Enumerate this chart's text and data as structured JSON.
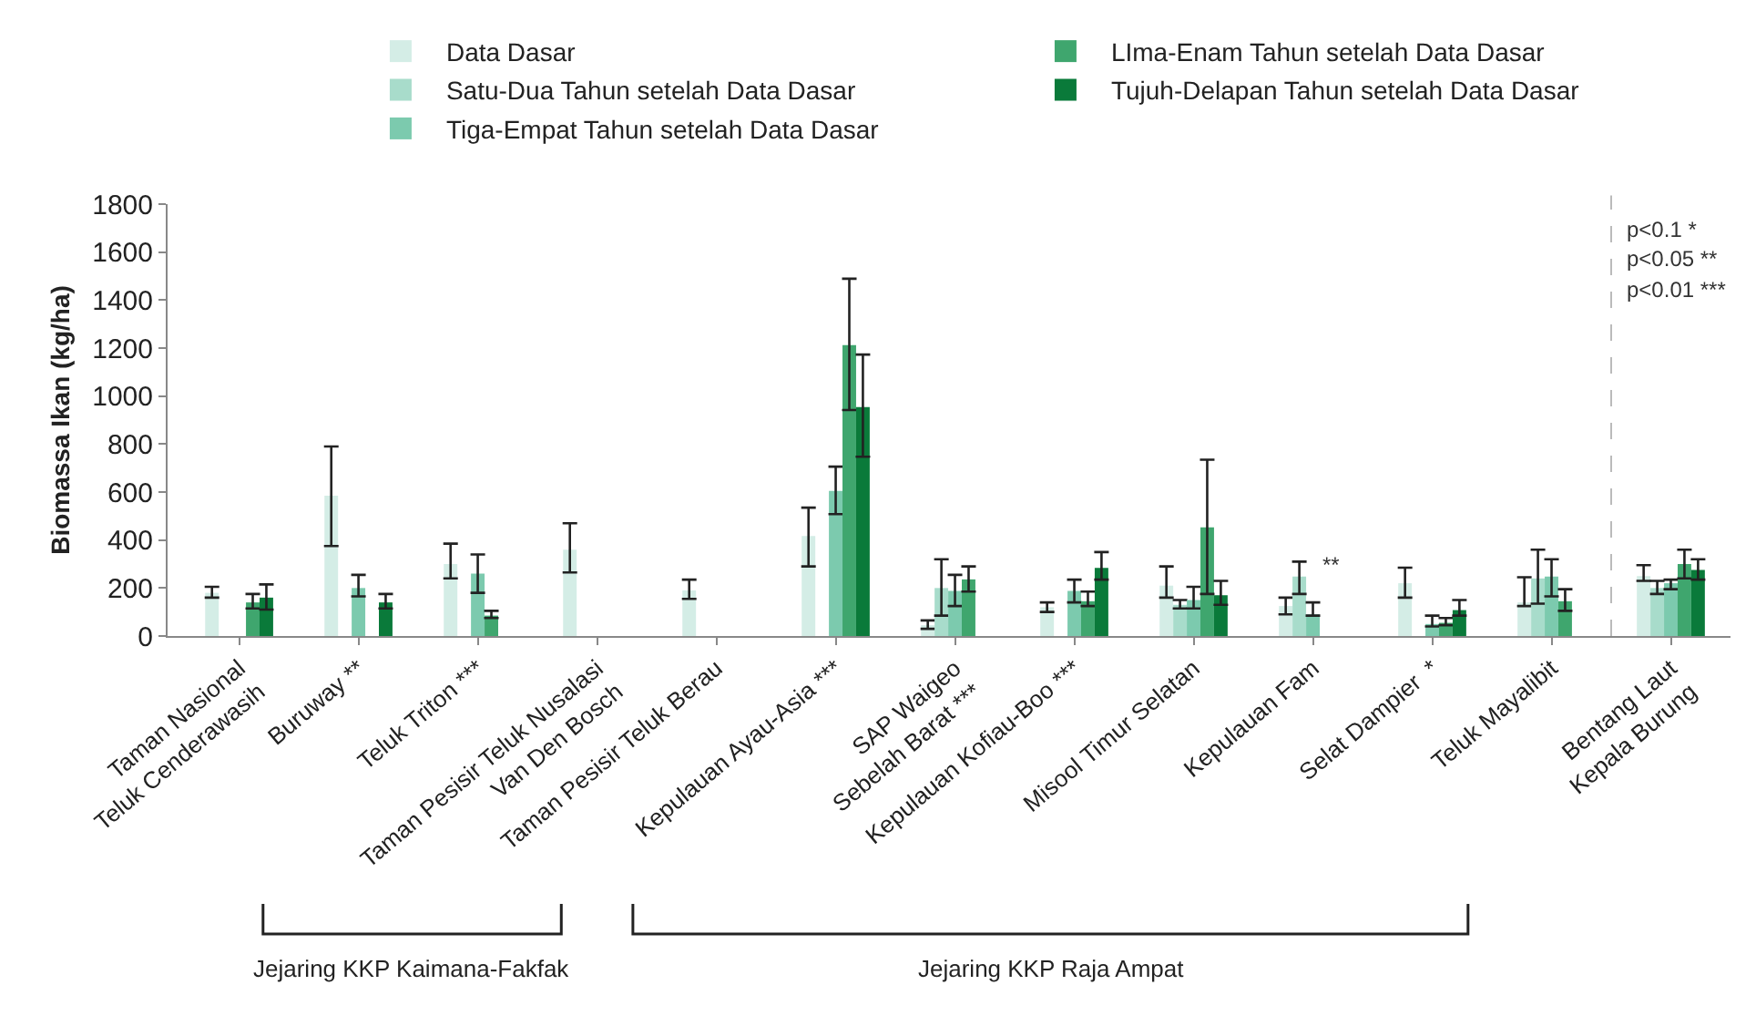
{
  "chart_data": {
    "type": "bar",
    "ylabel": "Biomassa Ikan (kg/ha)",
    "categories": [
      "Taman Nasional\nTeluk Cenderawasih",
      "Buruway **",
      "Teluk Triton ***",
      "Taman Pesisir Teluk Nusalasi\nVan Den Bosch",
      "Taman Pesisir Teluk Berau",
      "Kepulauan Ayau-Asia ***",
      "SAP Waigeo\nSebelah Barat ***",
      "Kepulauan Kofiau-Boo ***",
      "Misool Timur Selatan",
      "Kepulauan Fam",
      "Selat Dampier  *",
      "Teluk Mayalibit",
      "Bentang Laut\nKepala Burung"
    ],
    "series": [
      {
        "name": "Data Dasar",
        "color": "#d4ede6",
        "values": [
          180,
          585,
          300,
          360,
          190,
          417,
          45,
          120,
          210,
          125,
          220,
          140,
          250
        ],
        "errors": [
          [
            160,
            205
          ],
          [
            375,
            790
          ],
          [
            240,
            385
          ],
          [
            265,
            470
          ],
          [
            155,
            235
          ],
          [
            290,
            535
          ],
          [
            30,
            65
          ],
          [
            100,
            140
          ],
          [
            160,
            290
          ],
          [
            90,
            160
          ],
          [
            160,
            285
          ],
          [
            125,
            245
          ],
          [
            230,
            295
          ]
        ]
      },
      {
        "name": "Satu-Dua Tahun setelah Data Dasar",
        "color": "#a8dccb",
        "values": [
          null,
          null,
          null,
          null,
          null,
          null,
          200,
          null,
          130,
          248,
          null,
          240,
          200
        ],
        "errors": [
          null,
          null,
          null,
          null,
          null,
          null,
          [
            85,
            320
          ],
          null,
          [
            115,
            150
          ],
          [
            175,
            310
          ],
          null,
          [
            135,
            360
          ],
          [
            175,
            230
          ]
        ]
      },
      {
        "name": "Tiga-Empat Tahun setelah Data Dasar",
        "color": "#7ccaae",
        "values": [
          null,
          200,
          260,
          null,
          null,
          605,
          188,
          188,
          150,
          90,
          50,
          248,
          220
        ],
        "errors": [
          null,
          [
            165,
            255
          ],
          [
            180,
            340
          ],
          null,
          null,
          [
            508,
            706
          ],
          [
            125,
            255
          ],
          [
            140,
            235
          ],
          [
            115,
            205
          ],
          [
            85,
            140
          ],
          [
            40,
            85
          ],
          [
            165,
            320
          ],
          [
            195,
            235
          ]
        ]
      },
      {
        "name": "LIma-Enam Tahun setelah Data Dasar",
        "color": "#3fa66e",
        "values": [
          140,
          null,
          85,
          null,
          null,
          1212,
          236,
          145,
          453,
          null,
          55,
          145,
          300
        ],
        "errors": [
          [
            115,
            175
          ],
          null,
          [
            75,
            105
          ],
          null,
          null,
          [
            942,
            1489
          ],
          [
            185,
            290
          ],
          [
            125,
            185
          ],
          [
            175,
            735
          ],
          null,
          [
            45,
            75
          ],
          [
            105,
            195
          ],
          [
            240,
            360
          ]
        ]
      },
      {
        "name": "Tujuh-Delapan Tahun setelah Data Dasar",
        "color": "#0a7a3a",
        "values": [
          160,
          140,
          null,
          null,
          null,
          954,
          null,
          284,
          170,
          null,
          108,
          null,
          275
        ],
        "errors": [
          [
            110,
            215
          ],
          [
            115,
            175
          ],
          null,
          null,
          null,
          [
            747,
            1173
          ],
          null,
          [
            235,
            350
          ],
          [
            130,
            230
          ],
          null,
          [
            85,
            150
          ],
          null,
          [
            235,
            320
          ]
        ]
      }
    ],
    "ylim": [
      0,
      1800
    ],
    "yticks": [
      0,
      200,
      400,
      600,
      800,
      1000,
      1200,
      1400,
      1600,
      1800
    ],
    "grid": false,
    "legend": "top",
    "annotations": [
      {
        "text": "**",
        "x": "Kepulauan Fam",
        "y": 300
      },
      "p<0.1 *",
      "p<0.05 **",
      "p<0.01 ***",
      "Jejaring KKP Kaimana-Fakfak",
      "Jejaring KKP Raja Ampat"
    ]
  }
}
